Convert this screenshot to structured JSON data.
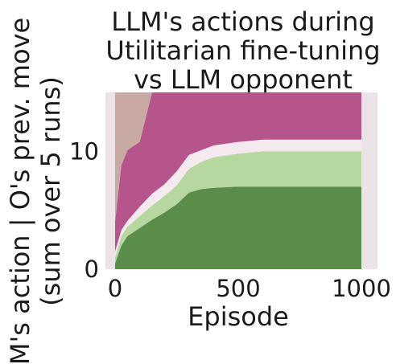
{
  "chart_data": {
    "type": "area",
    "title_lines": [
      "LLM's actions during",
      "Utilitarian fine-tuning",
      "vs LLM opponent"
    ],
    "xlabel": "Episode",
    "ylabel_lines": [
      "M's action | O's prev. move",
      "(sum over 5 runs)"
    ],
    "xlim": [
      0,
      1000
    ],
    "ylim": [
      0,
      15
    ],
    "xticks": [
      0,
      500,
      1000
    ],
    "xtick_labels": [
      "0",
      "500",
      "1000"
    ],
    "yticks": [
      0,
      10
    ],
    "ytick_labels": [
      "0",
      "10"
    ],
    "grid": false,
    "stacked": true,
    "series": [
      {
        "color": "#5a8c4a",
        "x": [
          0,
          25,
          50,
          100,
          150,
          200,
          250,
          300,
          350,
          400,
          500,
          600,
          700,
          800,
          900,
          1000
        ],
        "values": [
          0.5,
          2,
          2.8,
          3.5,
          4.2,
          4.8,
          5.5,
          6.5,
          6.8,
          6.9,
          7.0,
          7.0,
          7.0,
          7.0,
          7.0,
          7.0
        ]
      },
      {
        "color": "#b7d7a0",
        "x": [
          0,
          25,
          50,
          100,
          150,
          200,
          250,
          300,
          350,
          400,
          500,
          600,
          700,
          800,
          900,
          1000
        ],
        "values": [
          0.5,
          0.8,
          0.8,
          1.0,
          1.2,
          1.4,
          1.6,
          2.0,
          2.3,
          2.6,
          2.8,
          3.0,
          3.0,
          3.0,
          3.0,
          3.0
        ]
      },
      {
        "color": "#f3e9ef",
        "x": [
          0,
          25,
          50,
          100,
          150,
          200,
          250,
          300,
          350,
          400,
          500,
          600,
          700,
          800,
          900,
          1000
        ],
        "values": [
          0.5,
          0.5,
          0.5,
          0.8,
          1.0,
          1.0,
          1.2,
          1.2,
          1.0,
          1.0,
          1.0,
          1.0,
          1.0,
          1.0,
          1.0,
          1.0
        ]
      },
      {
        "color": "#b6558b",
        "x": [
          0,
          25,
          50,
          100,
          150,
          200,
          250,
          300,
          350,
          400,
          500,
          600,
          700,
          800,
          900,
          1000
        ],
        "values": [
          2.5,
          5.5,
          6.0,
          5.5,
          8.6,
          7.8,
          6.7,
          5.3,
          4.9,
          4.5,
          4.2,
          4.0,
          4.0,
          4.0,
          4.0,
          4.0
        ]
      },
      {
        "color": "#c8aaa2",
        "x": [
          0,
          25,
          50,
          100,
          150,
          200,
          250,
          300,
          350,
          400,
          500,
          600,
          700,
          800,
          900,
          1000
        ],
        "values": [
          11.0,
          6.2,
          4.9,
          4.2,
          0,
          0,
          0,
          0,
          0,
          0,
          0,
          0,
          0,
          0,
          0,
          0
        ]
      }
    ]
  },
  "colors": {
    "plot_background": "#ebe3e8",
    "text": "#1a1a1a"
  }
}
